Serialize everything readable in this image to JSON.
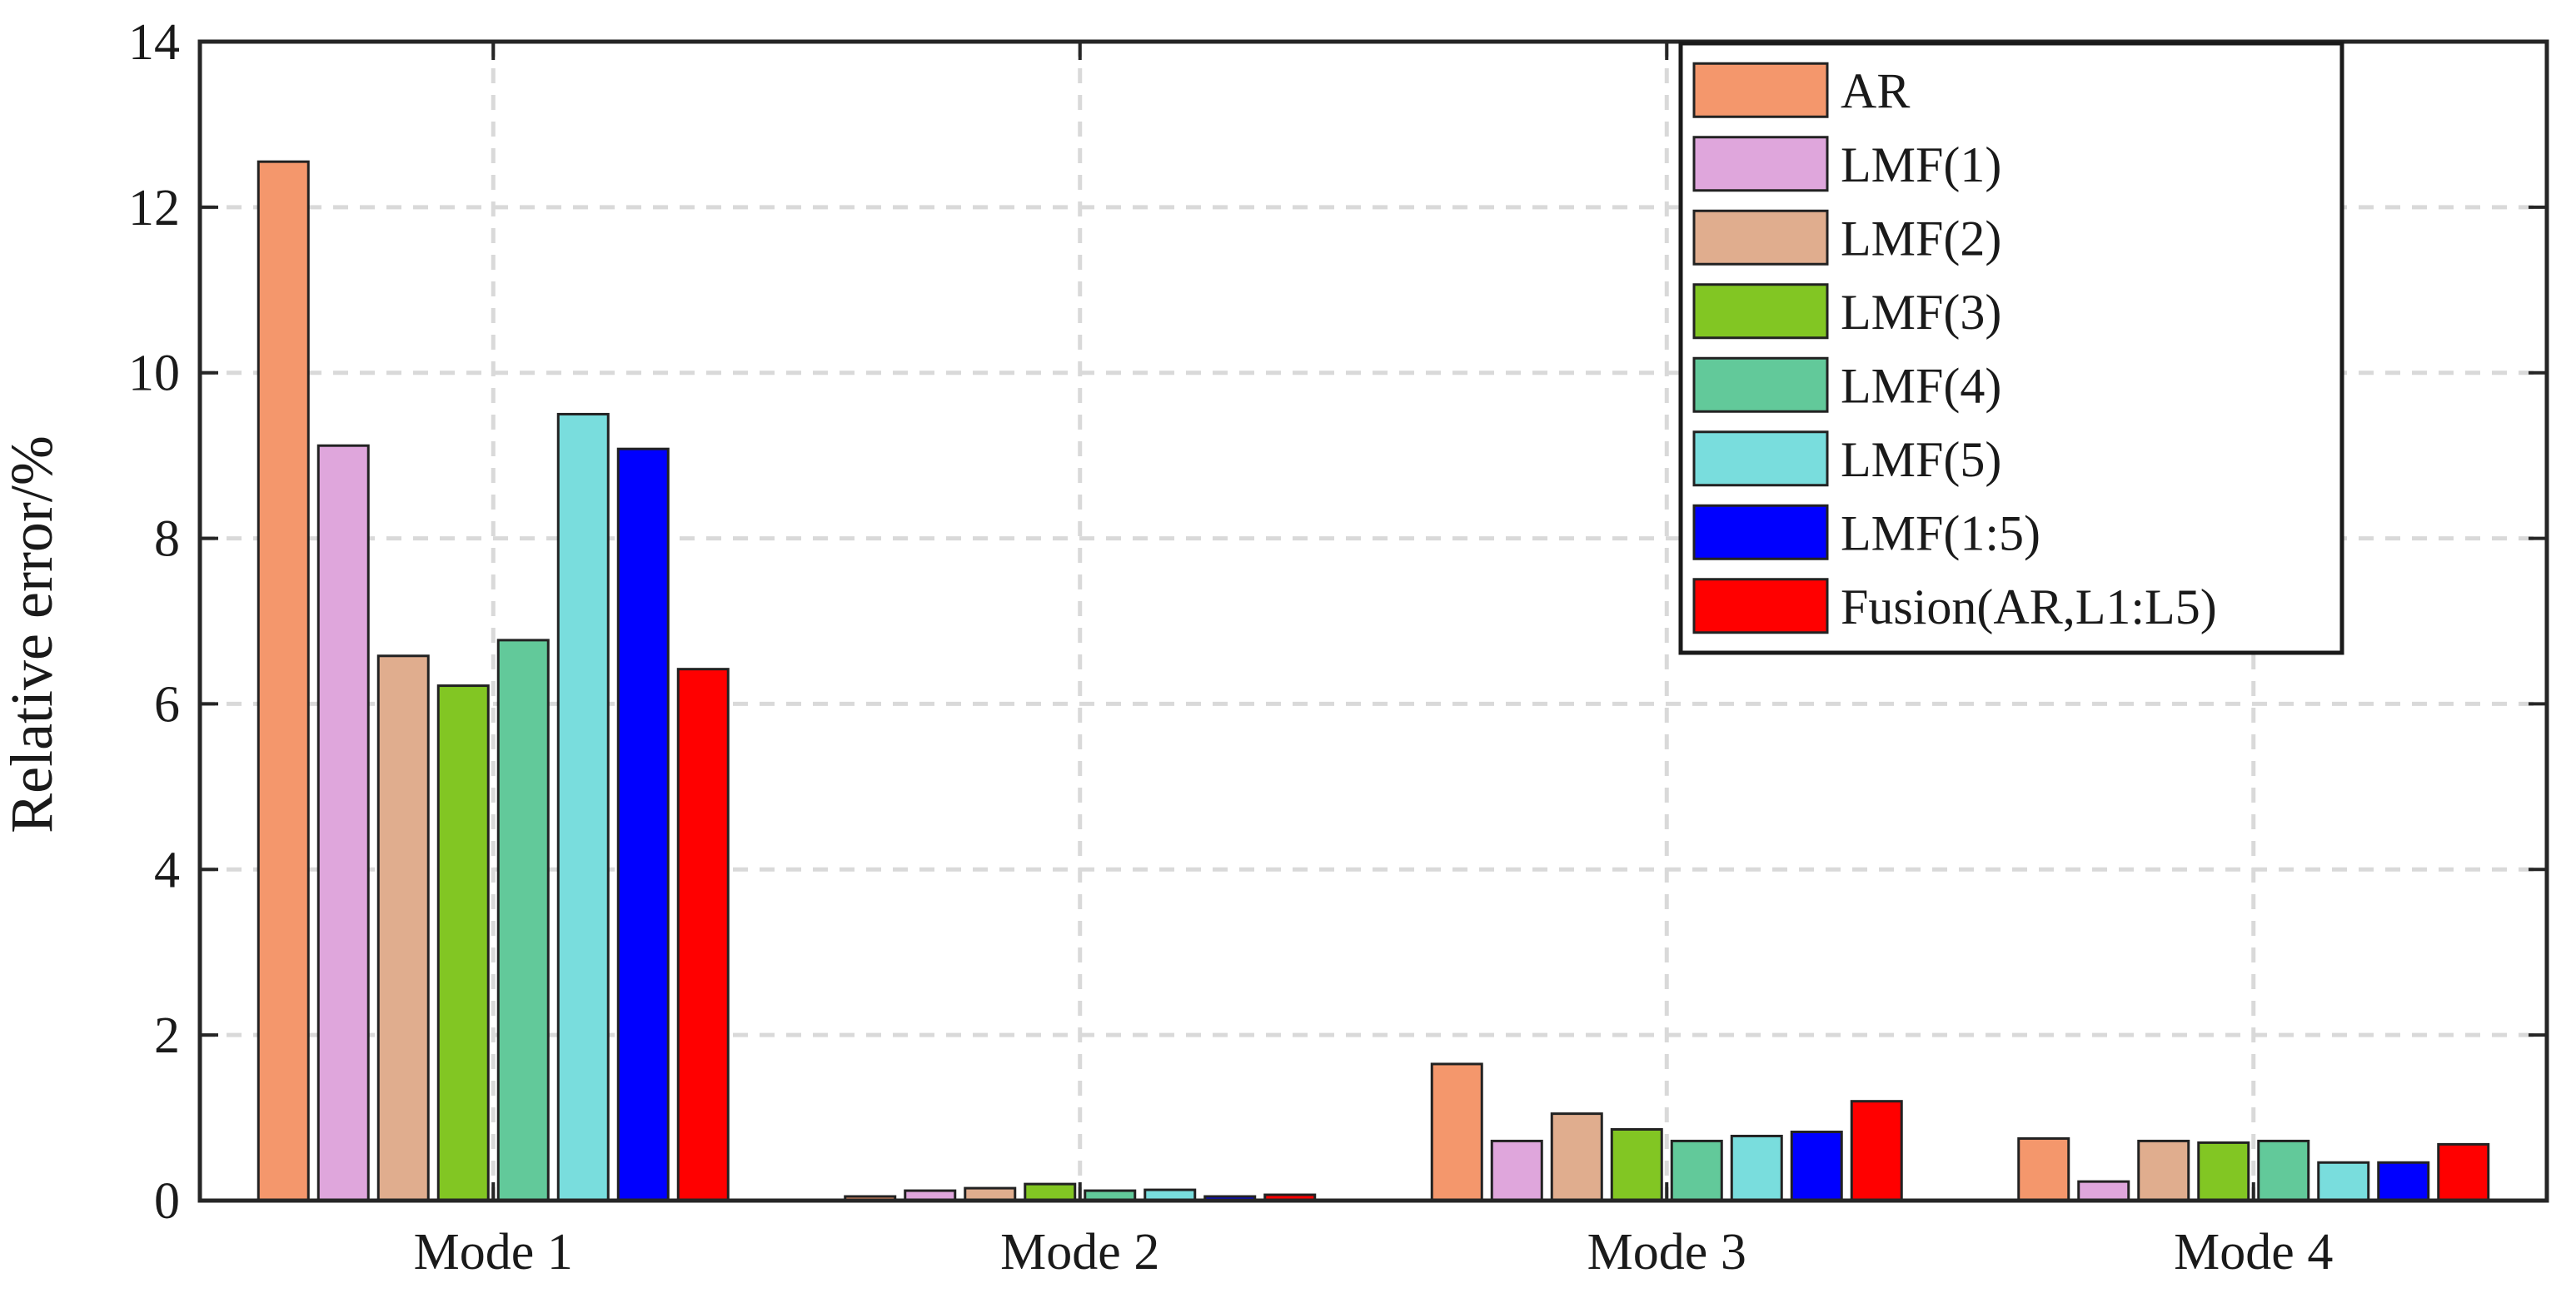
{
  "chart_data": {
    "type": "bar",
    "title": "",
    "xlabel": "",
    "ylabel": "Relative error/%",
    "categories": [
      "Mode 1",
      "Mode 2",
      "Mode 3",
      "Mode 4"
    ],
    "ylim": [
      0,
      14
    ],
    "yticks": [
      0,
      2,
      4,
      6,
      8,
      10,
      12,
      14
    ],
    "ytick_labels": [
      "0",
      "2",
      "4",
      "6",
      "8",
      "10",
      "12",
      "14"
    ],
    "grid": true,
    "legend_position": "top-right",
    "series": [
      {
        "name": "AR",
        "color": "#f4976c",
        "values": [
          12.55,
          0.05,
          1.65,
          0.75
        ]
      },
      {
        "name": "LMF(1)",
        "color": "#dfa6dc",
        "values": [
          9.12,
          0.12,
          0.72,
          0.23
        ]
      },
      {
        "name": "LMF(2)",
        "color": "#e0ad8e",
        "values": [
          6.58,
          0.15,
          1.05,
          0.72
        ]
      },
      {
        "name": "LMF(3)",
        "color": "#82c623",
        "values": [
          6.22,
          0.2,
          0.86,
          0.7
        ]
      },
      {
        "name": "LMF(4)",
        "color": "#62c99a",
        "values": [
          6.77,
          0.12,
          0.72,
          0.72
        ]
      },
      {
        "name": "LMF(5)",
        "color": "#79dddd",
        "values": [
          9.5,
          0.13,
          0.78,
          0.46
        ]
      },
      {
        "name": "LMF(1:5)",
        "color": "#0000ff",
        "values": [
          9.08,
          0.05,
          0.83,
          0.46
        ]
      },
      {
        "name": "Fusion(AR,L1:L5)",
        "color": "#ff0000",
        "values": [
          6.42,
          0.07,
          1.2,
          0.68
        ]
      }
    ]
  }
}
